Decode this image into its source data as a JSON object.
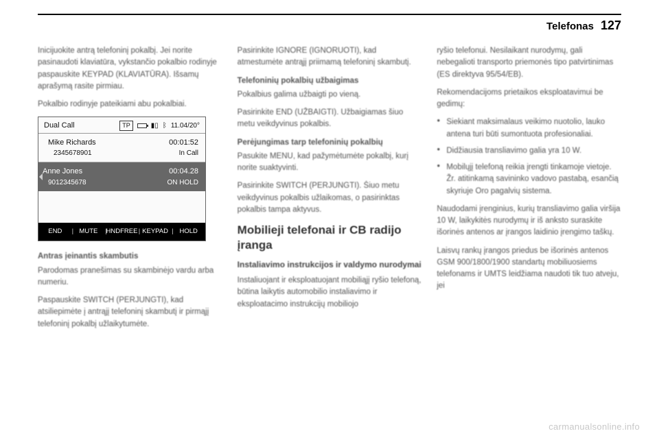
{
  "header": {
    "title": "Telefonas",
    "page": "127"
  },
  "col1": {
    "p1": "Inicijuokite antrą telefoninį pokalbį. Jei norite pasinaudoti klaviatūra, vykstančio pokalbio rodinyje paspauskite KEYPAD (KLAVIATŪRA). Išsamų aprašymą rasite pirmiau.",
    "p2": "Pokalbio rodinyje pateikiami abu pokalbiai.",
    "p3_bold": "Antras įeinantis skambutis",
    "p3": "Parodomas pranešimas su skambinėjo vardu arba numeriu.",
    "p4": "Paspauskite SWITCH (PERJUNGTI), kad atsiliepimėte į antrąjį telefoninį skambutį ir pirmąjį telefoninį pokalbį užlaikytumėte."
  },
  "phone": {
    "topLeft": "Dual Call",
    "tp": "TP",
    "temp": "11.04/20°",
    "call1": {
      "name": "Mike Richards",
      "time": "00:01:52",
      "number": "2345678901",
      "status": "In Call"
    },
    "call2": {
      "name": "Anne Jones",
      "time": "00:04.28",
      "number": "9012345678",
      "status": "ON HOLD"
    },
    "buttons": [
      "END",
      "MUTE",
      "HNDFREE",
      "KEYPAD",
      "HOLD"
    ]
  },
  "col2": {
    "p1": "Pasirinkite IGNORE (IGNORUOTI), kad atmestumėte antrąjį priimamą telefoninį skambutį.",
    "h1": "Telefoninių pokalbių užbaigimas",
    "p2": "Pokalbius galima užbaigti po vieną.",
    "p3": "Pasirinkite END (UŽBAIGTI). Užbaigiamas šiuo metu veikdyvinus pokalbis.",
    "h2": "Perėjungimas tarp telefoninių pokalbių",
    "p4": "Pasukite MENU, kad pažymėtumėte pokalbį, kurį norite suaktyvinti.",
    "p5": "Pasirinkite SWITCH (PERJUNGTI). Šiuo metu veikdyvinus pokalbis užlaikomas, o pasirinktas pokalbis tampa aktyvus.",
    "section_title": "Mobilieji telefonai ir CB radijo įranga",
    "sub": "Instaliavimo instrukcijos ir valdymo nurodymai",
    "p6": "Instaliuojant ir eksploatuojant mobiliąjį ryšio telefoną, būtina laikytis automobilio instaliavimo ir eksploatacimo instrukcijų mobiliojo"
  },
  "col3": {
    "p1": "ryšio telefonui. Nesilaikant nurodymų, gali nebegalioti transporto priemonės tipo patvirtinimas (ES direktyva 95/54/EB).",
    "p2": "Rekomendacijoms prietaikos eksploatavimui be gedimų:",
    "li1": "Siekiant maksimalaus veikimo nuotolio, lauko antena turi būti sumontuota profesionaliai.",
    "li2": "Didžiausia transliavimo galia yra 10 W.",
    "li3": "Mobilųjį telefoną reikia įrengti tinkamoje vietoje. Žr. atitinkamą savininko vadovo pastabą, esančią skyriuje Oro pagalvių sistema.",
    "p3": "Naudodami įrenginius, kurių transliavimo galia viršija 10 W, laikykitės nurodymų ir iš anksto suraskite išorinės antenos ar įrangos laidinio įrengimo taškų.",
    "p4": "Laisvų rankų įrangos priedus be išorinės antenos GSM 900/1800/1900 standartų mobiliuosiems telefonams ir UMTS leidžiama naudoti tik tuo atveju, jei"
  },
  "watermark": "carmanualsonline.info"
}
